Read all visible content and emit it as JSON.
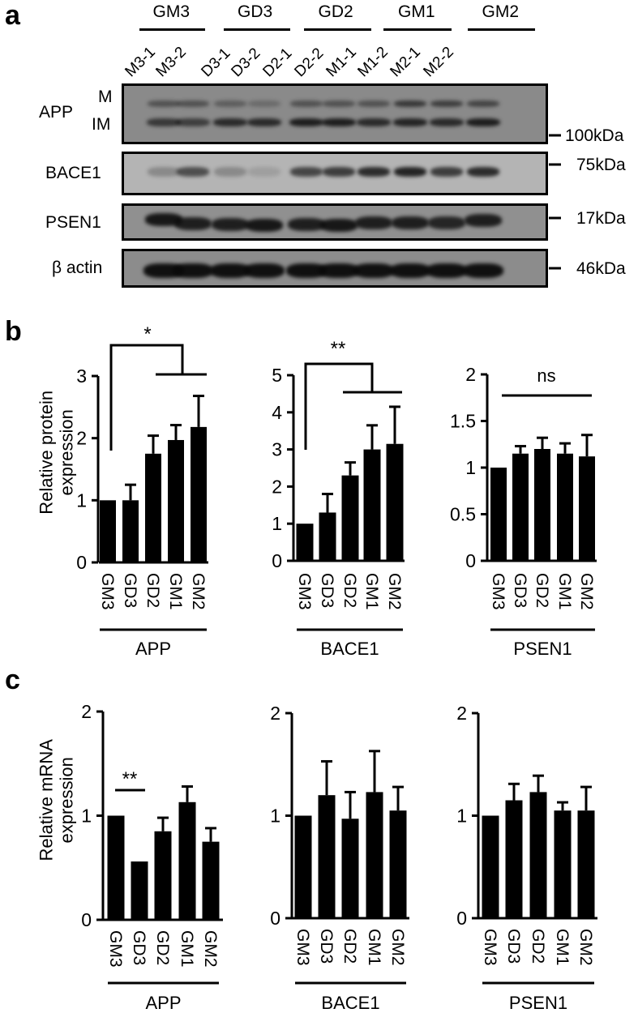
{
  "panels": {
    "a": {
      "letter": "a",
      "groups": [
        {
          "label": "GM3",
          "lanes": [
            "M3-1",
            "M3-2"
          ]
        },
        {
          "label": "GD3",
          "lanes": [
            "D3-1",
            "D3-2"
          ]
        },
        {
          "label": "GD2",
          "lanes": [
            "D2-1",
            "D2-2"
          ]
        },
        {
          "label": "GM1",
          "lanes": [
            "M1-1",
            "M1-2"
          ]
        },
        {
          "label": "GM2",
          "lanes": [
            "M2-1",
            "M2-2"
          ]
        }
      ],
      "blots": [
        {
          "name": "APP",
          "sublabels": [
            "M",
            "IM"
          ],
          "marker": "100kDa"
        },
        {
          "name": "BACE1",
          "marker": "75kDa"
        },
        {
          "name": "PSEN1",
          "marker": "17kDa"
        },
        {
          "name": "β actin",
          "marker": "46kDa"
        }
      ]
    },
    "b": {
      "letter": "b",
      "ylabel_line1": "Relative protein",
      "ylabel_line2": "expression"
    },
    "c": {
      "letter": "c",
      "ylabel_line1": "Relative mRNA",
      "ylabel_line2": "expression"
    }
  },
  "chart_data": [
    {
      "type": "bar",
      "panel": "b",
      "title": "APP",
      "xlabel": "APP",
      "ylabel": "Relative protein expression",
      "categories": [
        "GM3",
        "GD3",
        "GD2",
        "GM1",
        "GM2"
      ],
      "values": [
        1.0,
        1.0,
        1.75,
        1.97,
        2.18
      ],
      "errors": [
        0,
        0.25,
        0.29,
        0.24,
        0.5
      ],
      "ylim": [
        0,
        3
      ],
      "yticks": [
        0,
        1,
        2,
        3
      ],
      "annotation": {
        "text": "*",
        "type": "bracket",
        "from": "GM3",
        "to": [
          "GD2",
          "GM1",
          "GM2"
        ]
      }
    },
    {
      "type": "bar",
      "panel": "b",
      "title": "BACE1",
      "xlabel": "BACE1",
      "ylabel": "Relative protein expression",
      "categories": [
        "GM3",
        "GD3",
        "GD2",
        "GM1",
        "GM2"
      ],
      "values": [
        1.0,
        1.3,
        2.3,
        3.0,
        3.15
      ],
      "errors": [
        0,
        0.5,
        0.35,
        0.65,
        1.0
      ],
      "ylim": [
        0,
        5
      ],
      "yticks": [
        0,
        1,
        2,
        3,
        4,
        5
      ],
      "annotation": {
        "text": "**",
        "type": "bracket",
        "from": "GM3",
        "to": [
          "GD2",
          "GM1",
          "GM2"
        ]
      }
    },
    {
      "type": "bar",
      "panel": "b",
      "title": "PSEN1",
      "xlabel": "PSEN1",
      "ylabel": "Relative protein expression",
      "categories": [
        "GM3",
        "GD3",
        "GD2",
        "GM1",
        "GM2"
      ],
      "values": [
        1.0,
        1.15,
        1.2,
        1.15,
        1.12
      ],
      "errors": [
        0,
        0.08,
        0.12,
        0.11,
        0.23
      ],
      "ylim": [
        0,
        2
      ],
      "yticks": [
        0,
        0.5,
        1,
        1.5,
        2
      ],
      "annotation": {
        "text": "ns",
        "type": "line",
        "from": "GD3",
        "to": "GM2"
      }
    },
    {
      "type": "bar",
      "panel": "c",
      "title": "APP",
      "xlabel": "APP",
      "ylabel": "Relative mRNA expression",
      "categories": [
        "GM3",
        "GD3",
        "GD2",
        "GM1",
        "GM2"
      ],
      "values": [
        1.0,
        0.56,
        0.85,
        1.13,
        0.75
      ],
      "errors": [
        0,
        0,
        0.13,
        0.15,
        0.13
      ],
      "ylim": [
        0,
        2
      ],
      "yticks": [
        0,
        1,
        2
      ],
      "annotation": {
        "text": "**",
        "type": "line",
        "from": "GM3",
        "to": "GD3"
      }
    },
    {
      "type": "bar",
      "panel": "c",
      "title": "BACE1",
      "xlabel": "BACE1",
      "ylabel": "Relative mRNA expression",
      "categories": [
        "GM3",
        "GD3",
        "GD2",
        "GM1",
        "GM2"
      ],
      "values": [
        1.0,
        1.2,
        0.97,
        1.23,
        1.05
      ],
      "errors": [
        0,
        0.33,
        0.26,
        0.4,
        0.23
      ],
      "ylim": [
        0,
        2
      ],
      "yticks": [
        0,
        1,
        2
      ]
    },
    {
      "type": "bar",
      "panel": "c",
      "title": "PSEN1",
      "xlabel": "PSEN1",
      "ylabel": "Relative mRNA expression",
      "categories": [
        "GM3",
        "GD3",
        "GD2",
        "GM1",
        "GM2"
      ],
      "values": [
        1.0,
        1.15,
        1.23,
        1.05,
        1.05
      ],
      "errors": [
        0,
        0.16,
        0.16,
        0.08,
        0.23
      ],
      "ylim": [
        0,
        2
      ],
      "yticks": [
        0,
        1,
        2
      ]
    }
  ]
}
